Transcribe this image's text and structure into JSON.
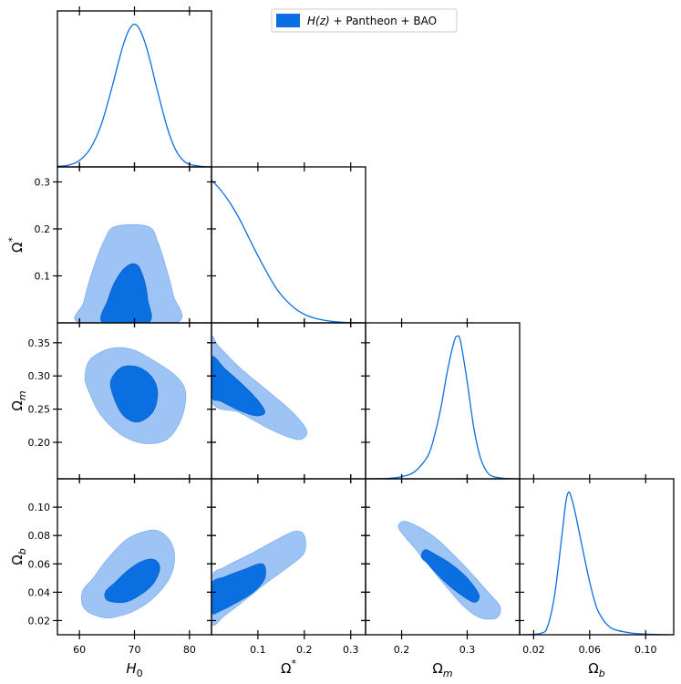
{
  "chart_data": {
    "type": "triangle_corner_plot",
    "legend": {
      "label_prefix": "H(z)",
      "label_suffix": " + Pantheon + BAO",
      "color": "#0a6fe0",
      "position": "top-right"
    },
    "colors": {
      "line": "#0a6fe0",
      "contour_68": "#0a6fe0",
      "contour_95": "#9dc4f5"
    },
    "parameters": [
      {
        "key": "H0",
        "base": "H",
        "sub": "0",
        "sup": "",
        "range": [
          56,
          84
        ],
        "ticks": [
          60,
          70,
          80
        ],
        "tick_labels": [
          "60",
          "70",
          "80"
        ]
      },
      {
        "key": "Ostar",
        "base": "Ω",
        "sub": "",
        "sup": "*",
        "range": [
          0.0,
          0.332
        ],
        "ticks": [
          0.1,
          0.2,
          0.3
        ],
        "tick_labels": [
          "0.1",
          "0.2",
          "0.3"
        ]
      },
      {
        "key": "Om",
        "base": "Ω",
        "sub": "m",
        "sup": "",
        "range": [
          0.145,
          0.38
        ],
        "ticks": [
          0.2,
          0.25,
          0.3,
          0.35
        ],
        "tick_labels": [
          "0.20",
          "0.25",
          "0.30",
          "0.35"
        ],
        "x_ticks": [
          0.2,
          0.3
        ],
        "x_tick_labels": [
          "0.2",
          "0.3"
        ]
      },
      {
        "key": "Ob",
        "base": "Ω",
        "sub": "b",
        "sup": "",
        "range": [
          0.01,
          0.12
        ],
        "ticks": [
          0.02,
          0.04,
          0.06,
          0.08,
          0.1
        ],
        "tick_labels": [
          "0.02",
          "0.04",
          "0.06",
          "0.08",
          "0.10"
        ],
        "x_ticks": [
          0.02,
          0.06,
          0.1
        ],
        "x_tick_labels": [
          "0.02",
          "0.06",
          "0.10"
        ]
      }
    ],
    "marginals": [
      {
        "param": "H0",
        "points": [
          [
            56,
            0.005
          ],
          [
            58,
            0.012
          ],
          [
            60,
            0.045
          ],
          [
            62,
            0.13
          ],
          [
            64,
            0.3
          ],
          [
            66,
            0.57
          ],
          [
            67,
            0.72
          ],
          [
            68,
            0.86
          ],
          [
            69,
            0.96
          ],
          [
            70,
            1.0
          ],
          [
            71,
            0.96
          ],
          [
            72,
            0.86
          ],
          [
            73,
            0.72
          ],
          [
            74,
            0.56
          ],
          [
            75,
            0.41
          ],
          [
            76,
            0.27
          ],
          [
            77,
            0.16
          ],
          [
            78,
            0.085
          ],
          [
            79,
            0.04
          ],
          [
            80,
            0.018
          ],
          [
            82,
            0.004
          ],
          [
            84,
            0.0
          ]
        ]
      },
      {
        "param": "Ostar",
        "points": [
          [
            0.0,
            1.0
          ],
          [
            0.02,
            0.93
          ],
          [
            0.04,
            0.84
          ],
          [
            0.06,
            0.73
          ],
          [
            0.08,
            0.6
          ],
          [
            0.1,
            0.47
          ],
          [
            0.12,
            0.35
          ],
          [
            0.14,
            0.24
          ],
          [
            0.16,
            0.16
          ],
          [
            0.18,
            0.1
          ],
          [
            0.2,
            0.06
          ],
          [
            0.22,
            0.035
          ],
          [
            0.24,
            0.02
          ],
          [
            0.26,
            0.01
          ],
          [
            0.28,
            0.005
          ],
          [
            0.3,
            0.002
          ],
          [
            0.332,
            0.0
          ]
        ]
      },
      {
        "param": "Om",
        "points": [
          [
            0.145,
            0.0
          ],
          [
            0.18,
            0.003
          ],
          [
            0.2,
            0.015
          ],
          [
            0.22,
            0.05
          ],
          [
            0.24,
            0.16
          ],
          [
            0.25,
            0.3
          ],
          [
            0.26,
            0.5
          ],
          [
            0.27,
            0.76
          ],
          [
            0.28,
            0.96
          ],
          [
            0.285,
            1.0
          ],
          [
            0.29,
            0.96
          ],
          [
            0.3,
            0.68
          ],
          [
            0.31,
            0.36
          ],
          [
            0.32,
            0.15
          ],
          [
            0.33,
            0.05
          ],
          [
            0.34,
            0.015
          ],
          [
            0.36,
            0.002
          ],
          [
            0.38,
            0.0
          ]
        ]
      },
      {
        "param": "Ob",
        "points": [
          [
            0.01,
            0.0
          ],
          [
            0.025,
            0.01
          ],
          [
            0.03,
            0.06
          ],
          [
            0.035,
            0.28
          ],
          [
            0.04,
            0.68
          ],
          [
            0.043,
            0.93
          ],
          [
            0.045,
            1.0
          ],
          [
            0.047,
            0.96
          ],
          [
            0.05,
            0.84
          ],
          [
            0.055,
            0.6
          ],
          [
            0.06,
            0.37
          ],
          [
            0.065,
            0.19
          ],
          [
            0.07,
            0.1
          ],
          [
            0.075,
            0.05
          ],
          [
            0.08,
            0.03
          ],
          [
            0.09,
            0.012
          ],
          [
            0.1,
            0.005
          ],
          [
            0.12,
            0.0
          ]
        ]
      }
    ],
    "contours": [
      {
        "x": "H0",
        "y": "Ostar",
        "c95": [
          [
            60.3,
            0.0
          ],
          [
            60.8,
            0.045
          ],
          [
            62.5,
            0.115
          ],
          [
            64.5,
            0.175
          ],
          [
            66.5,
            0.205
          ],
          [
            72.5,
            0.205
          ],
          [
            74.3,
            0.17
          ],
          [
            75.8,
            0.115
          ],
          [
            77.0,
            0.06
          ],
          [
            77.5,
            0.0
          ]
        ],
        "c68": [
          [
            64.3,
            0.0
          ],
          [
            65.2,
            0.05
          ],
          [
            66.8,
            0.095
          ],
          [
            68.8,
            0.122
          ],
          [
            70.6,
            0.122
          ],
          [
            71.8,
            0.09
          ],
          [
            72.4,
            0.05
          ],
          [
            72.5,
            0.0
          ]
        ]
      },
      {
        "x": "H0",
        "y": "Om",
        "c95": [
          [
            61.8,
            0.275
          ],
          [
            61.0,
            0.298
          ],
          [
            62.0,
            0.325
          ],
          [
            65.5,
            0.341
          ],
          [
            69.5,
            0.34
          ],
          [
            73.5,
            0.323
          ],
          [
            77.5,
            0.3
          ],
          [
            79.3,
            0.275
          ],
          [
            78.5,
            0.235
          ],
          [
            76.0,
            0.205
          ],
          [
            72.5,
            0.198
          ],
          [
            69.0,
            0.205
          ],
          [
            66.0,
            0.222
          ],
          [
            63.5,
            0.246
          ]
        ],
        "c68": [
          [
            65.7,
            0.283
          ],
          [
            66.2,
            0.301
          ],
          [
            68.0,
            0.314
          ],
          [
            70.8,
            0.313
          ],
          [
            73.2,
            0.298
          ],
          [
            74.2,
            0.275
          ],
          [
            73.5,
            0.248
          ],
          [
            71.3,
            0.232
          ],
          [
            69.2,
            0.233
          ],
          [
            67.3,
            0.248
          ]
        ]
      },
      {
        "x": "Ostar",
        "y": "Om",
        "c95": [
          [
            0.0,
            0.355
          ],
          [
            0.015,
            0.345
          ],
          [
            0.06,
            0.313
          ],
          [
            0.12,
            0.278
          ],
          [
            0.175,
            0.245
          ],
          [
            0.205,
            0.218
          ],
          [
            0.195,
            0.205
          ],
          [
            0.17,
            0.207
          ],
          [
            0.12,
            0.222
          ],
          [
            0.06,
            0.245
          ],
          [
            0.0,
            0.262
          ]
        ],
        "c68": [
          [
            0.0,
            0.328
          ],
          [
            0.03,
            0.31
          ],
          [
            0.07,
            0.285
          ],
          [
            0.1,
            0.263
          ],
          [
            0.115,
            0.245
          ],
          [
            0.095,
            0.24
          ],
          [
            0.06,
            0.248
          ],
          [
            0.02,
            0.262
          ],
          [
            0.0,
            0.27
          ]
        ]
      },
      {
        "x": "H0",
        "y": "Ob",
        "c95": [
          [
            61.0,
            0.028
          ],
          [
            60.5,
            0.04
          ],
          [
            62.5,
            0.05
          ],
          [
            65.0,
            0.063
          ],
          [
            68.5,
            0.077
          ],
          [
            72.0,
            0.083
          ],
          [
            74.5,
            0.083
          ],
          [
            76.5,
            0.076
          ],
          [
            77.3,
            0.065
          ],
          [
            76.5,
            0.051
          ],
          [
            74.0,
            0.038
          ],
          [
            71.0,
            0.029
          ],
          [
            68.0,
            0.024
          ],
          [
            64.5,
            0.022
          ]
        ],
        "c68": [
          [
            65.2,
            0.034
          ],
          [
            64.7,
            0.04
          ],
          [
            66.5,
            0.047
          ],
          [
            69.0,
            0.056
          ],
          [
            71.5,
            0.062
          ],
          [
            73.6,
            0.063
          ],
          [
            74.6,
            0.057
          ],
          [
            73.4,
            0.046
          ],
          [
            71.0,
            0.038
          ],
          [
            68.3,
            0.033
          ]
        ]
      },
      {
        "x": "Ostar",
        "y": "Ob",
        "c95": [
          [
            0.0,
            0.018
          ],
          [
            0.0,
            0.05
          ],
          [
            0.03,
            0.058
          ],
          [
            0.09,
            0.068
          ],
          [
            0.14,
            0.077
          ],
          [
            0.18,
            0.083
          ],
          [
            0.2,
            0.08
          ],
          [
            0.2,
            0.068
          ],
          [
            0.17,
            0.059
          ],
          [
            0.12,
            0.047
          ],
          [
            0.07,
            0.034
          ],
          [
            0.03,
            0.024
          ]
        ],
        "c68": [
          [
            0.0,
            0.026
          ],
          [
            0.0,
            0.046
          ],
          [
            0.03,
            0.051
          ],
          [
            0.07,
            0.056
          ],
          [
            0.11,
            0.06
          ],
          [
            0.115,
            0.05
          ],
          [
            0.09,
            0.04
          ],
          [
            0.05,
            0.032
          ],
          [
            0.02,
            0.027
          ]
        ]
      },
      {
        "x": "Om",
        "y": "Ob",
        "c95": [
          [
            0.195,
            0.087
          ],
          [
            0.2,
            0.082
          ],
          [
            0.22,
            0.071
          ],
          [
            0.245,
            0.057
          ],
          [
            0.27,
            0.043
          ],
          [
            0.295,
            0.03
          ],
          [
            0.32,
            0.022
          ],
          [
            0.345,
            0.022
          ],
          [
            0.35,
            0.03
          ],
          [
            0.33,
            0.041
          ],
          [
            0.305,
            0.054
          ],
          [
            0.28,
            0.066
          ],
          [
            0.255,
            0.077
          ],
          [
            0.23,
            0.085
          ],
          [
            0.205,
            0.09
          ]
        ],
        "c68": [
          [
            0.23,
            0.065
          ],
          [
            0.24,
            0.06
          ],
          [
            0.26,
            0.05
          ],
          [
            0.285,
            0.04
          ],
          [
            0.31,
            0.033
          ],
          [
            0.318,
            0.038
          ],
          [
            0.3,
            0.05
          ],
          [
            0.275,
            0.06
          ],
          [
            0.25,
            0.067
          ],
          [
            0.236,
            0.07
          ]
        ]
      }
    ]
  }
}
